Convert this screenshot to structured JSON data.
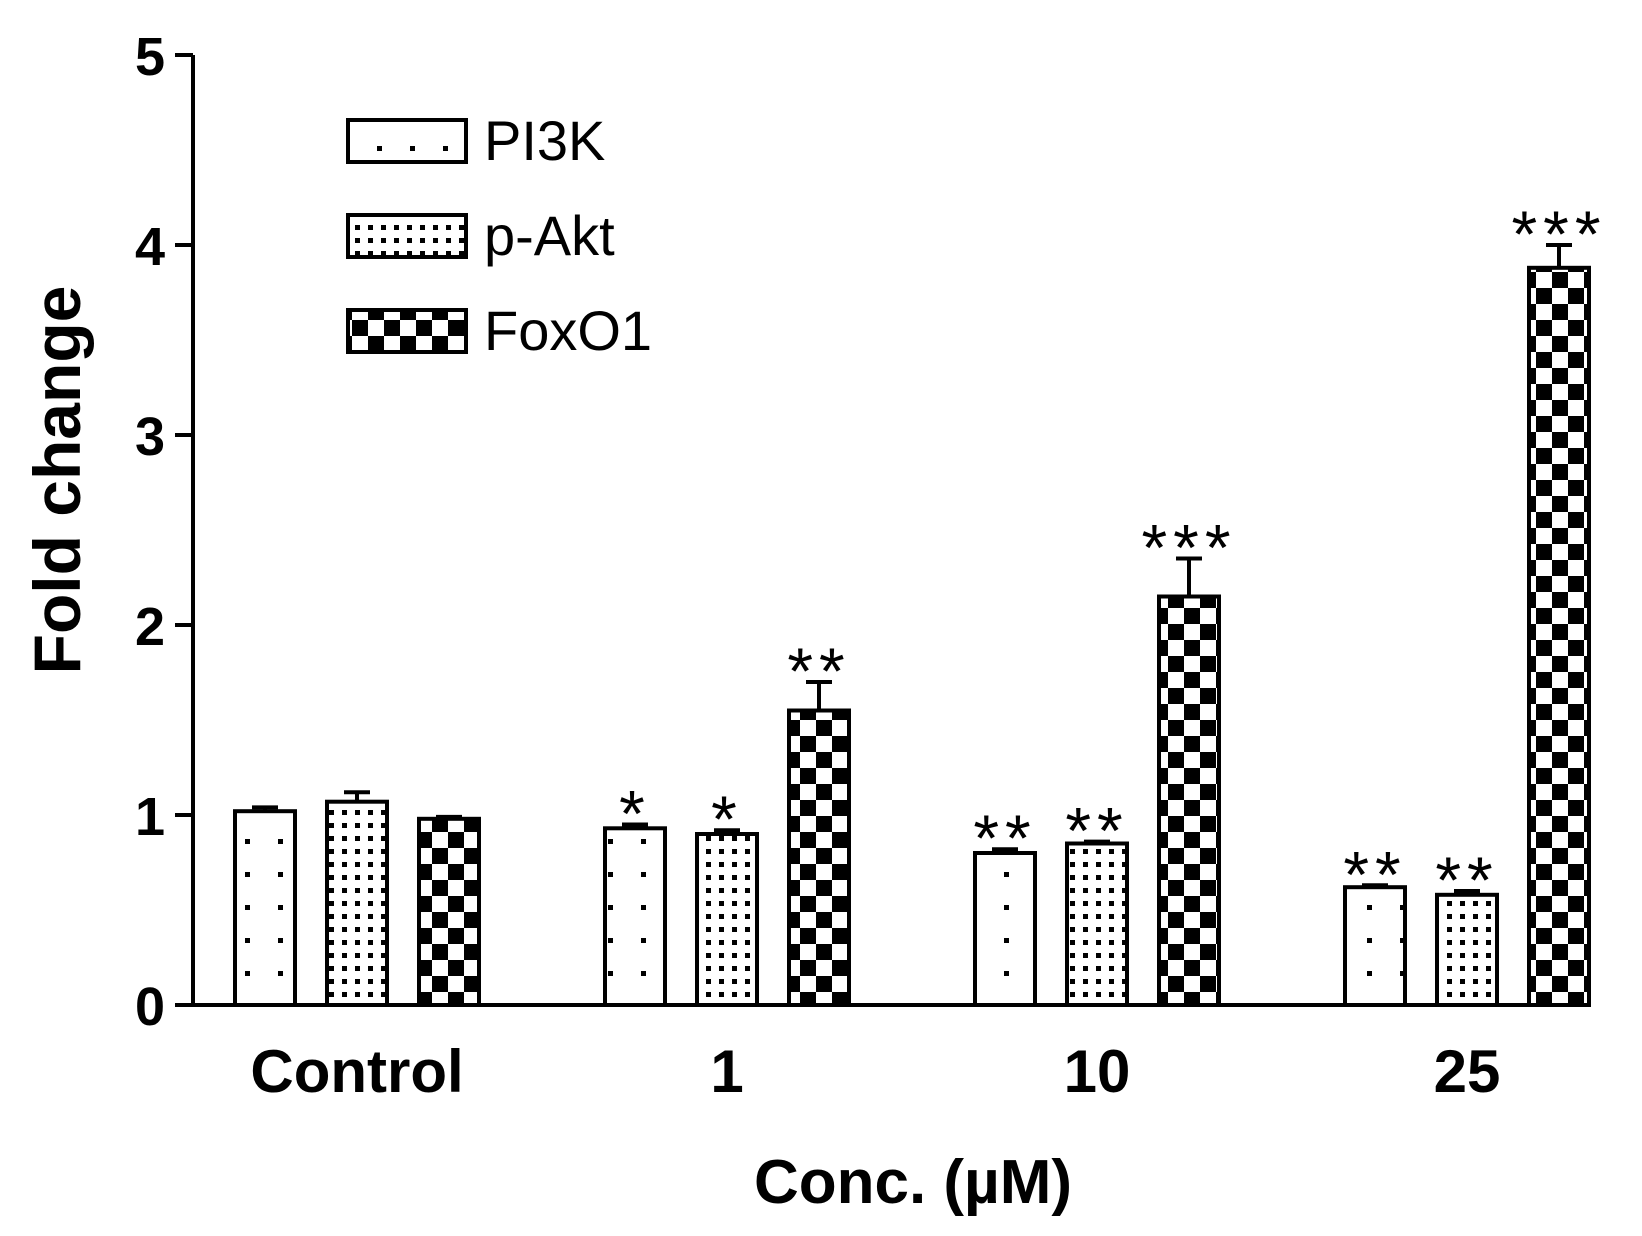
{
  "chart_data": {
    "type": "bar",
    "title": "",
    "xlabel": "Conc. (µM)",
    "ylabel": "Fold change",
    "ylim": [
      0,
      5
    ],
    "yticks": [
      "0",
      "1",
      "2",
      "3",
      "4",
      "5"
    ],
    "categories": [
      "Control",
      "1",
      "10",
      "25"
    ],
    "legend_position": "top-left",
    "grid": false,
    "series": [
      {
        "name": "PI3K",
        "pattern": "sparse-dots",
        "values": [
          1.02,
          0.93,
          0.8,
          0.62
        ],
        "errors": [
          0.02,
          0.02,
          0.02,
          0.01
        ],
        "significance": [
          "",
          "*",
          "**",
          "**"
        ]
      },
      {
        "name": "p-Akt",
        "pattern": "dense-dots",
        "values": [
          1.07,
          0.9,
          0.85,
          0.58
        ],
        "errors": [
          0.05,
          0.02,
          0.01,
          0.02
        ],
        "significance": [
          "",
          "*",
          "**",
          "**"
        ]
      },
      {
        "name": "FoxO1",
        "pattern": "checker",
        "values": [
          0.98,
          1.55,
          2.15,
          3.88
        ],
        "errors": [
          0.01,
          0.15,
          0.2,
          0.12
        ],
        "significance": [
          "",
          "**",
          "***",
          "***"
        ]
      }
    ]
  }
}
